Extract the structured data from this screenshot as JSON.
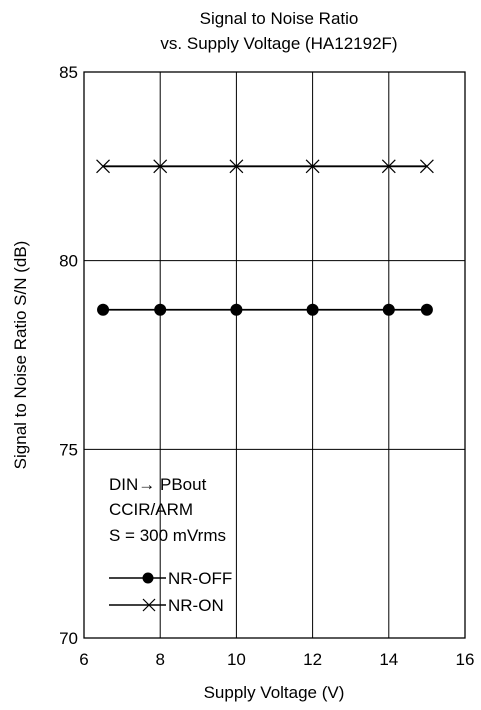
{
  "chart_data": {
    "type": "line",
    "title": [
      "Signal to Noise Ratio",
      "vs. Supply Voltage  (HA12192F)"
    ],
    "xlabel": "Supply Voltage  (V)",
    "ylabel": "Signal to Noise Ratio  S/N  (dB)",
    "xlim": [
      6,
      16
    ],
    "ylim": [
      70,
      85
    ],
    "xticks": [
      6,
      8,
      10,
      12,
      14,
      16
    ],
    "yticks": [
      70,
      75,
      80,
      85
    ],
    "x_tick_labels": [
      "6",
      "8",
      "10",
      "12",
      "14",
      "16"
    ],
    "y_tick_labels": [
      "70",
      "75",
      "80",
      "85"
    ],
    "grid": true,
    "series": [
      {
        "name": "NR-OFF",
        "marker": "filled-circle",
        "color": "#000000",
        "x": [
          6.5,
          8,
          10,
          12,
          14,
          15
        ],
        "y": [
          78.7,
          78.7,
          78.7,
          78.7,
          78.7,
          78.7
        ]
      },
      {
        "name": "NR-ON",
        "marker": "x",
        "color": "#000000",
        "x": [
          6.5,
          8,
          10,
          12,
          14,
          15
        ],
        "y": [
          82.5,
          82.5,
          82.5,
          82.5,
          82.5,
          82.5
        ]
      }
    ],
    "annotations": [
      "DIN→ PBout",
      "CCIR/ARM",
      "S = 300 mVrms"
    ],
    "legend_position": "bottom-left"
  }
}
